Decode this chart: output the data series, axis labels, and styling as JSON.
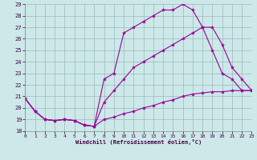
{
  "xlabel": "Windchill (Refroidissement éolien,°C)",
  "background_color": "#cce8e8",
  "grid_color": "#9bbaba",
  "line_color": "#990099",
  "xlim": [
    0,
    23
  ],
  "ylim": [
    18,
    29
  ],
  "yticks": [
    18,
    19,
    20,
    21,
    22,
    23,
    24,
    25,
    26,
    27,
    28,
    29
  ],
  "xticks": [
    0,
    1,
    2,
    3,
    4,
    5,
    6,
    7,
    8,
    9,
    10,
    11,
    12,
    13,
    14,
    15,
    16,
    17,
    18,
    19,
    20,
    21,
    22,
    23
  ],
  "line_top_x": [
    0,
    1,
    2,
    3,
    4,
    5,
    6,
    7,
    8,
    9,
    10,
    11,
    12,
    13,
    14,
    15,
    16,
    17,
    18,
    19,
    20,
    21,
    22,
    23
  ],
  "line_top_y": [
    20.8,
    19.7,
    19.0,
    18.9,
    19.0,
    18.9,
    18.5,
    18.4,
    22.5,
    23.0,
    26.5,
    27.0,
    27.5,
    28.0,
    28.5,
    28.5,
    29.0,
    28.5,
    27.0,
    25.0,
    23.0,
    22.5,
    21.5,
    21.5
  ],
  "line_mid_x": [
    0,
    1,
    2,
    3,
    4,
    5,
    6,
    7,
    8,
    9,
    10,
    11,
    12,
    13,
    14,
    15,
    16,
    17,
    18,
    19,
    20,
    21,
    22,
    23
  ],
  "line_mid_y": [
    20.8,
    19.7,
    19.0,
    18.9,
    19.0,
    18.9,
    18.5,
    18.4,
    20.5,
    21.5,
    22.5,
    23.5,
    24.0,
    24.5,
    25.0,
    25.5,
    26.0,
    26.5,
    27.0,
    27.0,
    25.5,
    23.5,
    22.5,
    21.5
  ],
  "line_bot_x": [
    0,
    1,
    2,
    3,
    4,
    5,
    6,
    7,
    8,
    9,
    10,
    11,
    12,
    13,
    14,
    15,
    16,
    17,
    18,
    19,
    20,
    21,
    22,
    23
  ],
  "line_bot_y": [
    20.8,
    19.7,
    19.0,
    18.9,
    19.0,
    18.9,
    18.5,
    18.4,
    19.0,
    19.2,
    19.5,
    19.7,
    20.0,
    20.2,
    20.5,
    20.7,
    21.0,
    21.2,
    21.3,
    21.4,
    21.4,
    21.5,
    21.5,
    21.5
  ]
}
